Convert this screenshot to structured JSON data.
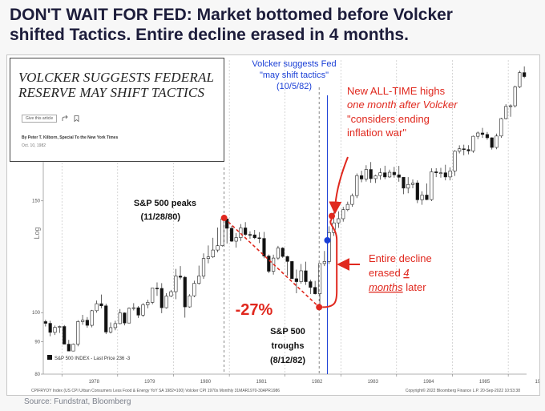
{
  "headline": {
    "line1": "DON'T WAIT FOR FED: Market bottomed before Volcker",
    "line2": "shifted Tactics. Entire decline erased in 4 months."
  },
  "news_clip": {
    "headline_line1": "VOLCKER SUGGESTS FEDERAL",
    "headline_line2": "RESERVE MAY SHIFT TACTICS",
    "gift_label": "Give this article",
    "share_icon": "share-icon",
    "bookmark_icon": "bookmark-icon",
    "byline": "By Peter T. Kilborn, Special To the New York Times",
    "date": "Oct. 10, 1982"
  },
  "annotations": {
    "volcker_line1": "Volcker suggests Fed",
    "volcker_line2": "\"may shift tactics\"",
    "volcker_line3": "(10/5/82)",
    "ath_line1": "New ALL-TIME highs",
    "ath_line2": "one month after Volcker",
    "ath_line3": "\"considers ending",
    "ath_line4": "inflation war\"",
    "peak_line1": "S&P 500 peaks",
    "peak_line2": "(11/28/80)",
    "decline_pct": "-27%",
    "trough_line1": "S&P 500",
    "trough_line2": "troughs",
    "trough_line3": "(8/12/82)",
    "erased_line1": "Entire decline",
    "erased_line2": "erased",
    "erased_num": "4",
    "erased_line3a": "months",
    "erased_line3b": "later"
  },
  "chart_data": {
    "type": "candlestick",
    "title": "",
    "xlabel": "",
    "ylabel": "Log",
    "y_scale": "log",
    "ylim": [
      80,
      250
    ],
    "y_ticks": [
      80,
      90,
      100,
      150
    ],
    "x_ticks": [
      "1978",
      "1979",
      "1980",
      "1981",
      "1982",
      "1983",
      "1984",
      "1985",
      "1986"
    ],
    "legend": "S&P 500 INDEX - Last Price 236 -3",
    "footer_left": "CPIFRYOY Index (US CPI Urban Consumers Less Food & Energy YoY SA 1982=100) Volcker CPI 1970s  Monthly 31MAR1970-30APR1986",
    "footer_right": "Copyright© 2022 Bloomberg Finance L.P.      20-Sep-2022 10:53:38",
    "key_points": [
      {
        "date": "1980-11-28",
        "value": 141,
        "label": "S&P 500 peaks",
        "color": "#e0281e"
      },
      {
        "date": "1982-08-12",
        "value": 102,
        "label": "S&P 500 troughs",
        "color": "#e0281e"
      },
      {
        "date": "1982-10-05",
        "value": 130,
        "label": "Volcker suggests Fed",
        "color": "#1a3fd6"
      },
      {
        "date": "1982-11-03",
        "value": 142,
        "label": "New ALL-TIME highs",
        "color": "#e0281e"
      }
    ],
    "decline_pct": -27,
    "months": [
      "1977-09",
      "1977-10",
      "1977-11",
      "1977-12",
      "1978-01",
      "1978-02",
      "1978-03",
      "1978-04",
      "1978-05",
      "1978-06",
      "1978-07",
      "1978-08",
      "1978-09",
      "1978-10",
      "1978-11",
      "1978-12",
      "1979-01",
      "1979-02",
      "1979-03",
      "1979-04",
      "1979-05",
      "1979-06",
      "1979-07",
      "1979-08",
      "1979-09",
      "1979-10",
      "1979-11",
      "1979-12",
      "1980-01",
      "1980-02",
      "1980-03",
      "1980-04",
      "1980-05",
      "1980-06",
      "1980-07",
      "1980-08",
      "1980-09",
      "1980-10",
      "1980-11",
      "1980-12",
      "1981-01",
      "1981-02",
      "1981-03",
      "1981-04",
      "1981-05",
      "1981-06",
      "1981-07",
      "1981-08",
      "1981-09",
      "1981-10",
      "1981-11",
      "1981-12",
      "1982-01",
      "1982-02",
      "1982-03",
      "1982-04",
      "1982-05",
      "1982-06",
      "1982-07",
      "1982-08",
      "1982-09",
      "1982-10",
      "1982-11",
      "1982-12",
      "1983-01",
      "1983-02",
      "1983-03",
      "1983-04",
      "1983-05",
      "1983-06",
      "1983-07",
      "1983-08",
      "1983-09",
      "1983-10",
      "1983-11",
      "1983-12",
      "1984-01",
      "1984-02",
      "1984-03",
      "1984-04",
      "1984-05",
      "1984-06",
      "1984-07",
      "1984-08",
      "1984-09",
      "1984-10",
      "1984-11",
      "1984-12",
      "1985-01",
      "1985-02",
      "1985-03",
      "1985-04",
      "1985-05",
      "1985-06",
      "1985-07",
      "1985-08",
      "1985-09",
      "1985-10",
      "1985-11",
      "1985-12",
      "1986-01",
      "1986-02",
      "1986-03",
      "1986-04"
    ],
    "open": [
      96.8,
      96.2,
      93.1,
      94.8,
      95.1,
      89.2,
      87.0,
      89.2,
      96.8,
      97.3,
      95.5,
      100.7,
      103.3,
      102.5,
      93.2,
      94.7,
      96.1,
      99.9,
      96.3,
      101.6,
      101.8,
      99.1,
      102.9,
      103.8,
      109.3,
      109.2,
      101.8,
      106.2,
      107.9,
      114.2,
      113.7,
      102.1,
      106.3,
      111.2,
      114.2,
      121.7,
      122.4,
      125.5,
      127.5,
      140.5,
      135.8,
      129.6,
      131.3,
      136.0,
      132.8,
      132.6,
      131.2,
      130.9,
      122.8,
      116.2,
      121.9,
      126.4,
      122.6,
      120.4,
      113.1,
      111.9,
      116.4,
      111.9,
      109.6,
      107.1,
      119.5,
      120.4,
      133.7,
      138.5,
      140.6,
      145.3,
      148.1,
      152.9,
      164.4,
      162.4,
      168.1,
      162.6,
      164.4,
      166.1,
      163.6,
      166.4,
      164.9,
      163.4,
      157.1,
      159.2,
      160.1,
      150.6,
      153.2,
      150.7,
      166.7,
      166.1,
      166.1,
      163.6,
      167.2,
      179.6,
      181.2,
      180.7,
      179.8,
      189.6,
      191.9,
      190.9,
      188.6,
      182.1,
      189.8,
      202.2,
      211.3,
      211.8,
      226.9,
      238.9
    ],
    "high": [
      97.5,
      97.1,
      95.4,
      95.4,
      95.6,
      90.6,
      89.4,
      97.3,
      99.2,
      98.4,
      101.0,
      104.5,
      106.8,
      103.3,
      96.5,
      97.1,
      101.3,
      100.1,
      101.9,
      103.5,
      102.4,
      103.5,
      104.8,
      109.3,
      111.6,
      111.3,
      107.3,
      108.6,
      117.2,
      118.4,
      114.2,
      106.9,
      112.3,
      118.6,
      124.0,
      127.6,
      131.2,
      136.2,
      141.5,
      140.7,
      137.0,
      133.5,
      137.9,
      138.9,
      134.3,
      135.0,
      133.9,
      134.0,
      123.5,
      123.4,
      127.4,
      126.8,
      122.9,
      120.6,
      116.9,
      119.3,
      120.3,
      112.7,
      112.2,
      118.6,
      125.1,
      136.8,
      143.9,
      144.4,
      146.8,
      149.6,
      154.0,
      165.7,
      167.3,
      170.7,
      172.7,
      165.0,
      168.8,
      170.4,
      168.0,
      169.7,
      170.3,
      163.6,
      163.5,
      162.1,
      161.6,
      155.3,
      159.8,
      168.8,
      168.9,
      169.1,
      171.0,
      169.4,
      180.3,
      183.5,
      183.9,
      183.6,
      190.1,
      192.9,
      195.5,
      192.6,
      188.9,
      191.5,
      202.8,
      213.0,
      212.9,
      227.9,
      240.6,
      244.3
    ],
    "low": [
      95.1,
      91.8,
      92.2,
      92.9,
      89.2,
      87.0,
      86.9,
      88.5,
      95.7,
      94.7,
      94.8,
      100.0,
      101.6,
      92.5,
      92.7,
      93.8,
      95.9,
      95.5,
      96.3,
      100.8,
      98.1,
      98.5,
      101.6,
      103.1,
      106.3,
      99.8,
      101.5,
      105.8,
      105.0,
      112.8,
      98.2,
      101.8,
      105.8,
      110.7,
      113.0,
      119.6,
      121.9,
      124.5,
      127.1,
      128.5,
      129.2,
      126.6,
      129.7,
      132.1,
      130.7,
      130.6,
      128.7,
      121.8,
      115.4,
      114.8,
      121.1,
      122.0,
      114.3,
      113.6,
      107.3,
      111.1,
      110.6,
      107.0,
      106.8,
      102.4,
      118.4,
      119.3,
      132.1,
      136.0,
      139.1,
      144.5,
      146.8,
      151.5,
      160.5,
      160.9,
      160.2,
      160.1,
      162.0,
      162.3,
      163.0,
      163.2,
      160.8,
      153.7,
      154.2,
      157.0,
      148.8,
      147.9,
      150.4,
      149.9,
      163.5,
      163.2,
      161.6,
      161.6,
      164.2,
      178.2,
      177.0,
      177.6,
      178.6,
      187.7,
      188.5,
      187.3,
      180.7,
      180.9,
      188.6,
      201.6,
      203.5,
      210.5,
      225.9,
      234.2
    ],
    "close": [
      96.2,
      93.1,
      94.8,
      95.1,
      89.2,
      87.0,
      89.2,
      96.8,
      97.3,
      95.5,
      100.7,
      103.3,
      102.5,
      93.2,
      94.7,
      96.1,
      99.9,
      96.3,
      101.6,
      101.8,
      99.1,
      102.9,
      103.8,
      109.3,
      109.2,
      101.8,
      106.2,
      107.9,
      114.2,
      113.7,
      102.1,
      106.3,
      111.2,
      114.2,
      121.7,
      122.4,
      125.5,
      127.5,
      140.5,
      135.8,
      129.6,
      131.3,
      136.0,
      132.8,
      132.6,
      131.2,
      130.9,
      122.8,
      116.2,
      121.9,
      126.4,
      122.6,
      120.4,
      113.1,
      111.9,
      116.4,
      111.9,
      109.6,
      107.1,
      119.5,
      120.4,
      133.7,
      138.5,
      140.6,
      145.3,
      148.1,
      152.9,
      164.4,
      162.4,
      168.1,
      162.6,
      164.4,
      166.1,
      163.6,
      166.4,
      164.9,
      163.4,
      157.1,
      159.2,
      160.1,
      150.6,
      153.2,
      150.7,
      166.7,
      166.1,
      166.1,
      163.6,
      167.2,
      179.6,
      181.2,
      180.7,
      179.8,
      189.6,
      191.9,
      190.9,
      188.6,
      182.1,
      189.8,
      202.2,
      211.3,
      211.8,
      226.9,
      238.9,
      235.5
    ]
  }
}
